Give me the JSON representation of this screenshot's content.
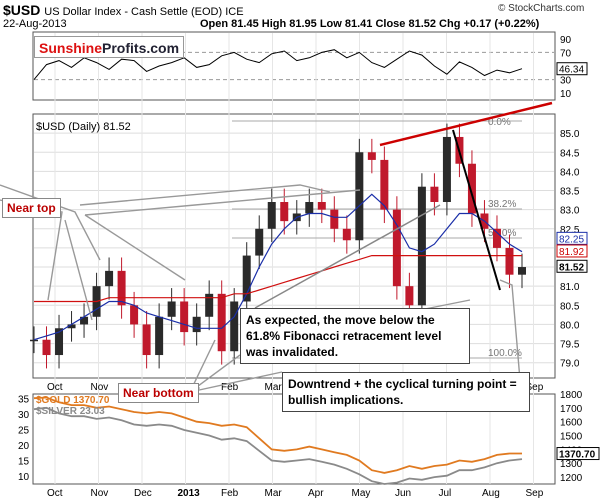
{
  "header": {
    "symbol": "$USD",
    "name": "US Dollar Index - Cash Settle (EOD) ICE",
    "date": "22-Aug-2013",
    "ohlc": "Open 81.45  High 81.95  Low 81.41  Close 81.52  Chg +0.17 (+0.22%)",
    "watermark": "© StockCharts.com",
    "logo_part1": "Sunshine",
    "logo_part2": "Profits.com"
  },
  "annotations": {
    "near_top": "Near top",
    "near_bottom": "Near bottom",
    "fib_note": [
      "As expected, the move below the",
      "61.8% Fibonacci retracement level",
      "was invalidated."
    ],
    "cycle_note": [
      "Downtrend + the cyclical turning point =",
      "bullish implications."
    ]
  },
  "fib_labels": [
    "0.0%",
    "38.2%",
    "50.0%",
    "100.0%"
  ],
  "chart_data": [
    {
      "type": "line",
      "panel": "rsi",
      "y_ticks": [
        10,
        30,
        50,
        70,
        90
      ],
      "ylim": [
        0,
        100
      ],
      "last_value": "46.34",
      "x": [
        0,
        6,
        12,
        18,
        24,
        30,
        36,
        42,
        48,
        54,
        60,
        66,
        72,
        78,
        84,
        90,
        96,
        102,
        108,
        114,
        120,
        126,
        132,
        138,
        144,
        150,
        156,
        162,
        168,
        174,
        180,
        186,
        192,
        198,
        204,
        210,
        216,
        222,
        228,
        234
      ],
      "values": [
        30,
        52,
        58,
        48,
        62,
        55,
        45,
        60,
        58,
        42,
        50,
        55,
        62,
        48,
        52,
        65,
        70,
        60,
        55,
        68,
        72,
        58,
        62,
        70,
        74,
        62,
        70,
        55,
        48,
        60,
        72,
        66,
        50,
        38,
        56,
        48,
        36,
        44,
        40,
        46
      ]
    },
    {
      "type": "candlestick",
      "panel": "price",
      "title": "$USD (Daily) 81.52",
      "y_ticks": [
        79.0,
        79.5,
        80.0,
        80.5,
        81.0,
        81.5,
        82.0,
        82.5,
        83.0,
        83.5,
        84.0,
        84.5,
        85.0
      ],
      "ylim": [
        78.6,
        85.5
      ],
      "x_ticks": [
        "Oct",
        "Nov",
        "Dec",
        "2013",
        "Feb",
        "Mar",
        "Apr",
        "May",
        "Jun",
        "Jul",
        "Aug",
        "Sep"
      ],
      "last_labels": [
        "82.25",
        "81.92",
        "81.52"
      ],
      "x": [
        0,
        6,
        12,
        18,
        24,
        30,
        36,
        42,
        48,
        54,
        60,
        66,
        72,
        78,
        84,
        90,
        96,
        102,
        108,
        114,
        120,
        126,
        132,
        138,
        144,
        150,
        156,
        162,
        168,
        174,
        180,
        186,
        192,
        198,
        204,
        210,
        216,
        222,
        228,
        234
      ],
      "close": [
        79.6,
        79.2,
        79.9,
        80.0,
        80.2,
        81.0,
        81.4,
        80.5,
        80.0,
        79.2,
        80.2,
        80.6,
        79.8,
        80.2,
        80.8,
        79.3,
        80.6,
        81.8,
        82.5,
        83.2,
        82.7,
        82.9,
        83.2,
        83.0,
        82.5,
        82.2,
        84.5,
        84.3,
        83.0,
        81.0,
        80.5,
        83.6,
        83.2,
        84.9,
        84.2,
        82.9,
        82.5,
        82.0,
        81.3,
        81.5
      ],
      "ma_short": [
        79.6,
        79.7,
        79.8,
        80.0,
        80.2,
        80.4,
        80.6,
        80.6,
        80.5,
        80.3,
        80.2,
        80.1,
        80.0,
        79.9,
        79.9,
        79.9,
        80.2,
        80.8,
        81.5,
        82.1,
        82.5,
        82.8,
        82.9,
        82.9,
        82.8,
        82.8,
        83.1,
        83.4,
        83.1,
        82.6,
        82.0,
        81.9,
        82.1,
        82.5,
        82.9,
        82.9,
        82.7,
        82.4,
        82.1,
        81.9
      ],
      "ma_long": [
        80.6,
        80.6,
        80.6,
        80.6,
        80.6,
        80.6,
        80.7,
        80.7,
        80.7,
        80.7,
        80.7,
        80.7,
        80.7,
        80.7,
        80.7,
        80.7,
        80.8,
        80.8,
        80.9,
        81.0,
        81.1,
        81.2,
        81.3,
        81.4,
        81.5,
        81.6,
        81.7,
        81.8,
        81.8,
        81.8,
        81.8,
        81.8,
        81.8,
        81.8,
        81.8,
        81.8,
        81.8,
        81.8,
        81.8,
        81.8
      ]
    },
    {
      "type": "line",
      "panel": "metals",
      "series": [
        {
          "name": "$GOLD",
          "last": "1370.70",
          "color": "#e07a20",
          "values": [
            1770,
            1775,
            1740,
            1720,
            1720,
            1700,
            1710,
            1690,
            1670,
            1660,
            1670,
            1660,
            1630,
            1600,
            1590,
            1570,
            1580,
            1560,
            1480,
            1400,
            1390,
            1400,
            1420,
            1400,
            1380,
            1360,
            1320,
            1250,
            1230,
            1250,
            1280,
            1260,
            1280,
            1290,
            1320,
            1310,
            1330,
            1360,
            1370,
            1370
          ]
        },
        {
          "name": "$SILVER",
          "last": "23.03",
          "color": "#8a8a8a",
          "values": [
            1690,
            1700,
            1660,
            1640,
            1640,
            1620,
            1630,
            1610,
            1580,
            1570,
            1580,
            1570,
            1540,
            1520,
            1500,
            1470,
            1480,
            1460,
            1390,
            1320,
            1310,
            1320,
            1330,
            1310,
            1290,
            1260,
            1220,
            1170,
            1150,
            1160,
            1190,
            1180,
            1200,
            1210,
            1250,
            1250,
            1270,
            1300,
            1320,
            1330
          ]
        }
      ],
      "y_ticks_left": [
        10,
        15,
        20,
        25,
        30,
        35
      ],
      "y_ticks_right": [
        1200,
        1300,
        1400,
        1500,
        1600,
        1700,
        1800
      ],
      "x_ticks": [
        "Oct",
        "Nov",
        "Dec",
        "2013",
        "Feb",
        "Mar",
        "Apr",
        "May",
        "Jun",
        "Jul",
        "Aug",
        "Sep"
      ]
    }
  ]
}
